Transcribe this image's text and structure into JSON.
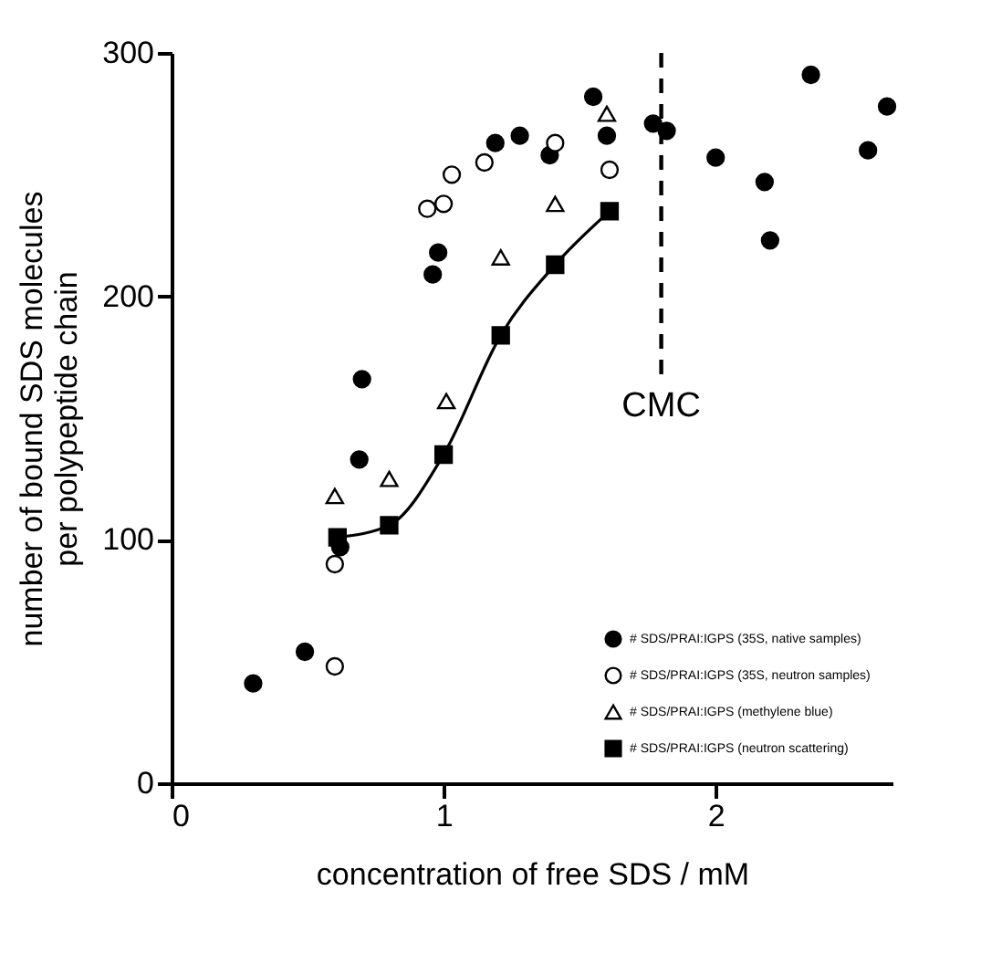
{
  "chart_data": {
    "type": "scatter",
    "xlabel": "concentration of free SDS / mM",
    "ylabel": "number of bound SDS molecules\nper polypeptide chain",
    "xlim": [
      0,
      2.65
    ],
    "ylim": [
      0,
      300
    ],
    "xticks": [
      0,
      1,
      2
    ],
    "yticks": [
      0,
      100,
      200,
      300
    ],
    "grid": false,
    "legend": "bottom right",
    "marker": "circle",
    "series": [
      {
        "name": "# SDS/PRAI:IGPS (35S, native samples)",
        "color": "#000000",
        "marker": "circle",
        "x": [
          0.3,
          0.49,
          0.62,
          0.69,
          0.7,
          0.96,
          0.98,
          1.19,
          1.28,
          1.39,
          1.55,
          1.6,
          1.77,
          1.82,
          2.0,
          2.18,
          2.2,
          2.35,
          2.56,
          2.63
        ],
        "values": [
          41,
          54,
          97,
          133,
          166,
          209,
          218,
          263,
          266,
          258,
          282,
          266,
          271,
          268,
          257,
          247,
          223,
          291,
          260,
          278
        ]
      },
      {
        "name": "# SDS/PRAI:IGPS (35S, neutron samples)",
        "color": "#ffffff",
        "marker": "circle",
        "x": [
          0.6,
          0.6,
          0.94,
          1.0,
          1.03,
          1.15,
          1.41,
          1.61
        ],
        "values": [
          48,
          90,
          236,
          238,
          250,
          255,
          263,
          252
        ]
      },
      {
        "name": "# SDS/PRAI:IGPS (methylene blue)",
        "color": "#ffffff",
        "marker": "triangle",
        "x": [
          0.6,
          0.8,
          1.01,
          1.21,
          1.41,
          1.6
        ],
        "values": [
          118,
          125,
          157,
          216,
          238,
          275
        ]
      },
      {
        "name": "# SDS/PRAI:IGPS (neutron scattering)",
        "type": "line",
        "line_style": "solid",
        "color": "#000000",
        "marker": "square",
        "x": [
          0.61,
          0.8,
          1.0,
          1.21,
          1.41,
          1.61
        ],
        "values": [
          101,
          106,
          135,
          184,
          213,
          235
        ]
      }
    ],
    "ref_lines": [
      {
        "axis": "x",
        "value": 1.8,
        "label": "CMC",
        "line_style": "dashed"
      }
    ]
  }
}
